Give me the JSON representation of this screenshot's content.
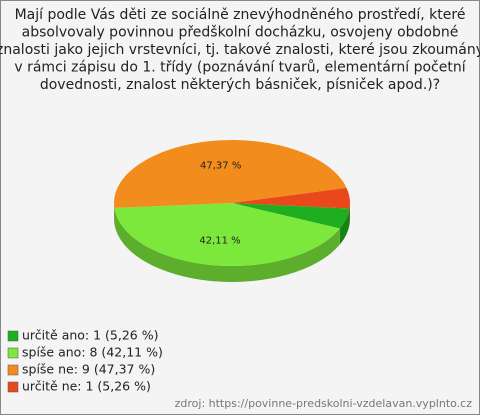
{
  "chart_data": {
    "type": "pie",
    "title": [
      "Mají podle Vás děti ze sociálně znevýhodněného prostředí, které",
      "absolvovaly povinnou předškolní docházku, osvojeny obdobné",
      "znalosti jako jejich vrstevníci, tj. takové znalosti, které jsou zkoumány",
      "v rámci zápisu do 1. třídy (poznávání tvarů, elementární početní",
      "dovednosti, znalost některých básniček, písniček apod.)?"
    ],
    "categories": [
      "určitě ano: 1 (5,26 %)",
      "spíše ano: 8 (42,11 %)",
      "spíše ne: 9 (47,37 %)",
      "určitě ne: 1 (5,26 %)"
    ],
    "values": [
      5.26,
      42.11,
      47.37,
      5.26
    ],
    "value_labels": [
      null,
      "42,11 %",
      "47,37 %",
      null
    ],
    "colors": [
      "#1fae1f",
      "#7de83c",
      "#f28c1c",
      "#e8481c"
    ],
    "source": "zdroj: https://povinne-predskolni-vzdelavan.vyplnto.cz"
  }
}
